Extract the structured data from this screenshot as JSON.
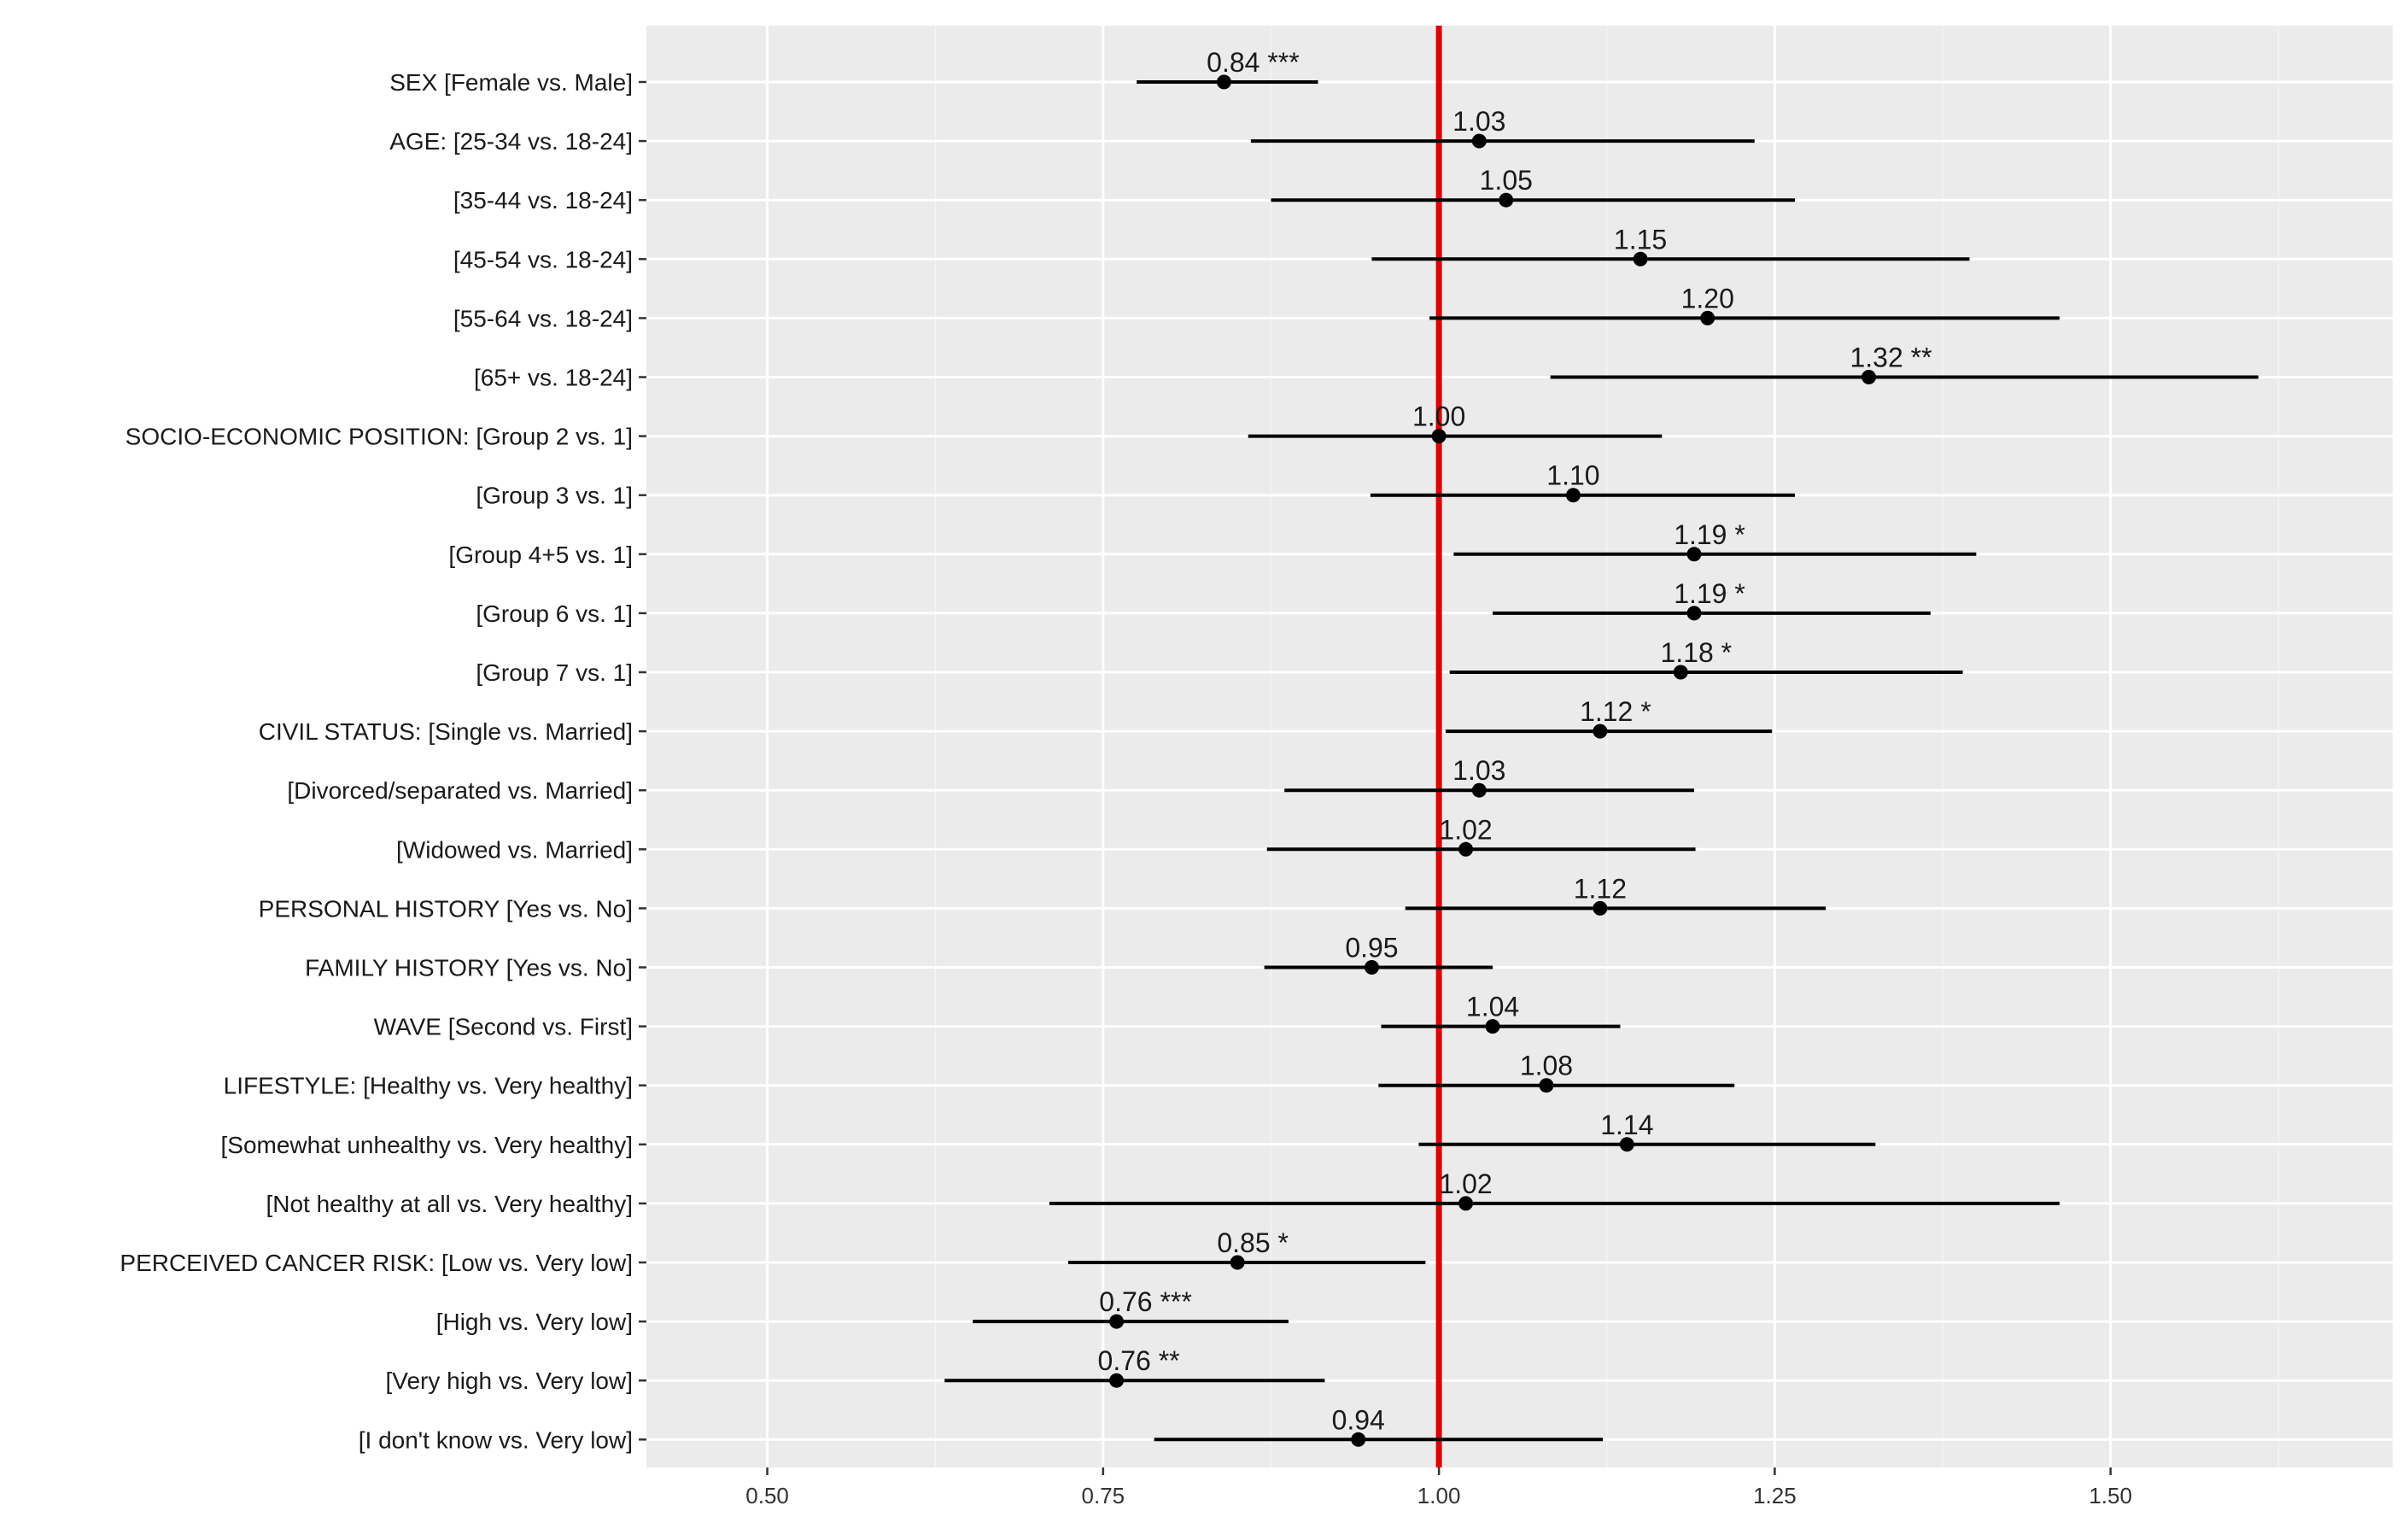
{
  "chart_data": {
    "type": "forest",
    "title": "",
    "xlabel": "",
    "ylabel": "",
    "xlim": [
      0.41,
      1.71
    ],
    "xticks": [
      0.5,
      0.75,
      1.0,
      1.25,
      1.5
    ],
    "xtick_labels": [
      "0.50",
      "0.75",
      "1.00",
      "1.25",
      "1.50"
    ],
    "reference_line": 1.0,
    "grid": true,
    "colors": {
      "panel": "#ebebeb",
      "grid_major": "#ffffff",
      "grid_minor": "#f4f4f4",
      "reference": "#dd0000",
      "marks": "#000000"
    },
    "rows": [
      {
        "label": "SEX [Female vs. Male]",
        "estimate": 0.84,
        "lower": 0.775,
        "upper": 0.91,
        "text": "0.84 ***"
      },
      {
        "label": "AGE: [25-34 vs. 18-24]",
        "estimate": 1.03,
        "lower": 0.86,
        "upper": 1.235,
        "text": "1.03"
      },
      {
        "label": "[35-44 vs. 18-24]",
        "estimate": 1.05,
        "lower": 0.875,
        "upper": 1.265,
        "text": "1.05"
      },
      {
        "label": "[45-54 vs. 18-24]",
        "estimate": 1.15,
        "lower": 0.95,
        "upper": 1.395,
        "text": "1.15"
      },
      {
        "label": "[55-64 vs. 18-24]",
        "estimate": 1.2,
        "lower": 0.993,
        "upper": 1.462,
        "text": "1.20"
      },
      {
        "label": "[65+ vs. 18-24]",
        "estimate": 1.32,
        "lower": 1.083,
        "upper": 1.61,
        "text": "1.32 **"
      },
      {
        "label": "SOCIO-ECONOMIC POSITION: [Group 2 vs. 1]",
        "estimate": 1.0,
        "lower": 0.858,
        "upper": 1.166,
        "text": "1.00"
      },
      {
        "label": "[Group 3 vs. 1]",
        "estimate": 1.1,
        "lower": 0.949,
        "upper": 1.265,
        "text": "1.10"
      },
      {
        "label": "[Group 4+5 vs. 1]",
        "estimate": 1.19,
        "lower": 1.011,
        "upper": 1.4,
        "text": "1.19 *"
      },
      {
        "label": "[Group 6 vs. 1]",
        "estimate": 1.19,
        "lower": 1.04,
        "upper": 1.366,
        "text": "1.19 *"
      },
      {
        "label": "[Group 7 vs. 1]",
        "estimate": 1.18,
        "lower": 1.008,
        "upper": 1.39,
        "text": "1.18 *"
      },
      {
        "label": "CIVIL STATUS: [Single vs. Married]",
        "estimate": 1.12,
        "lower": 1.005,
        "upper": 1.248,
        "text": "1.12 *"
      },
      {
        "label": "[Divorced/separated vs. Married]",
        "estimate": 1.03,
        "lower": 0.885,
        "upper": 1.19,
        "text": "1.03"
      },
      {
        "label": "[Widowed vs. Married]",
        "estimate": 1.02,
        "lower": 0.872,
        "upper": 1.191,
        "text": "1.02"
      },
      {
        "label": "PERSONAL HISTORY [Yes vs. No]",
        "estimate": 1.12,
        "lower": 0.975,
        "upper": 1.288,
        "text": "1.12"
      },
      {
        "label": "FAMILY HISTORY [Yes vs. No]",
        "estimate": 0.95,
        "lower": 0.87,
        "upper": 1.04,
        "text": "0.95"
      },
      {
        "label": "WAVE [Second vs. First]",
        "estimate": 1.04,
        "lower": 0.957,
        "upper": 1.135,
        "text": "1.04"
      },
      {
        "label": "LIFESTYLE: [Healthy vs. Very healthy]",
        "estimate": 1.08,
        "lower": 0.955,
        "upper": 1.22,
        "text": "1.08"
      },
      {
        "label": "[Somewhat unhealthy vs. Very healthy]",
        "estimate": 1.14,
        "lower": 0.985,
        "upper": 1.325,
        "text": "1.14"
      },
      {
        "label": "[Not healthy at all vs. Very healthy]",
        "estimate": 1.02,
        "lower": 0.71,
        "upper": 1.462,
        "text": "1.02"
      },
      {
        "label": "PERCEIVED CANCER RISK: [Low vs. Very low]",
        "estimate": 0.85,
        "lower": 0.724,
        "upper": 0.99,
        "text": "0.85 *"
      },
      {
        "label": "[High vs. Very low]",
        "estimate": 0.76,
        "lower": 0.653,
        "upper": 0.888,
        "text": "0.76 ***"
      },
      {
        "label": "[Very high vs. Very low]",
        "estimate": 0.76,
        "lower": 0.632,
        "upper": 0.915,
        "text": "0.76 **"
      },
      {
        "label": "[I don't know vs. Very low]",
        "estimate": 0.94,
        "lower": 0.788,
        "upper": 1.122,
        "text": "0.94"
      }
    ]
  }
}
